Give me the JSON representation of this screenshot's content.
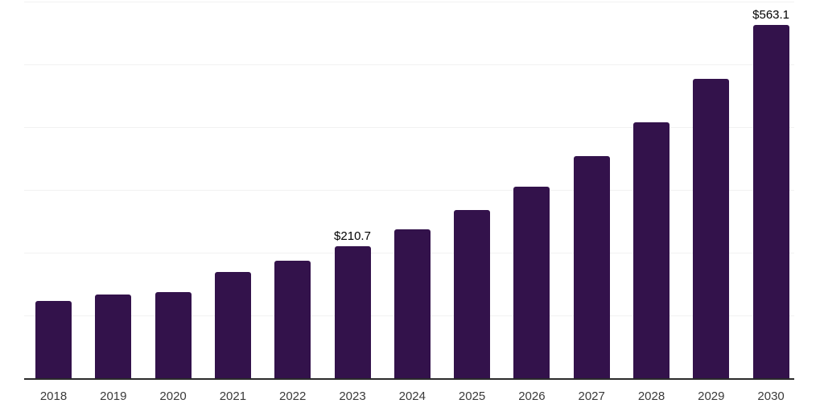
{
  "chart_data": {
    "type": "bar",
    "title": "",
    "xlabel": "",
    "ylabel": "",
    "categories": [
      "2018",
      "2019",
      "2020",
      "2021",
      "2022",
      "2023",
      "2024",
      "2025",
      "2026",
      "2027",
      "2028",
      "2029",
      "2030"
    ],
    "values": [
      123.0,
      132.8,
      136.6,
      168.6,
      187.7,
      210.7,
      236.9,
      268.2,
      305.2,
      353.7,
      407.4,
      476.3,
      563.1
    ],
    "data_labels": [
      "",
      "",
      "",
      "",
      "",
      "$210.7",
      "",
      "",
      "",
      "",
      "",
      "",
      "$563.1"
    ],
    "value_prefix": "$",
    "ylim": [
      0,
      600
    ],
    "grid_step": 100,
    "grid": "horizontal-only",
    "legend": "none",
    "colors": {
      "bar": "#33124b",
      "axis_line": "#2b2b2b",
      "gridline": "#f2f2f2",
      "data_label": "#000000",
      "tick_label": "#3a3a3a",
      "background": "#ffffff"
    }
  }
}
